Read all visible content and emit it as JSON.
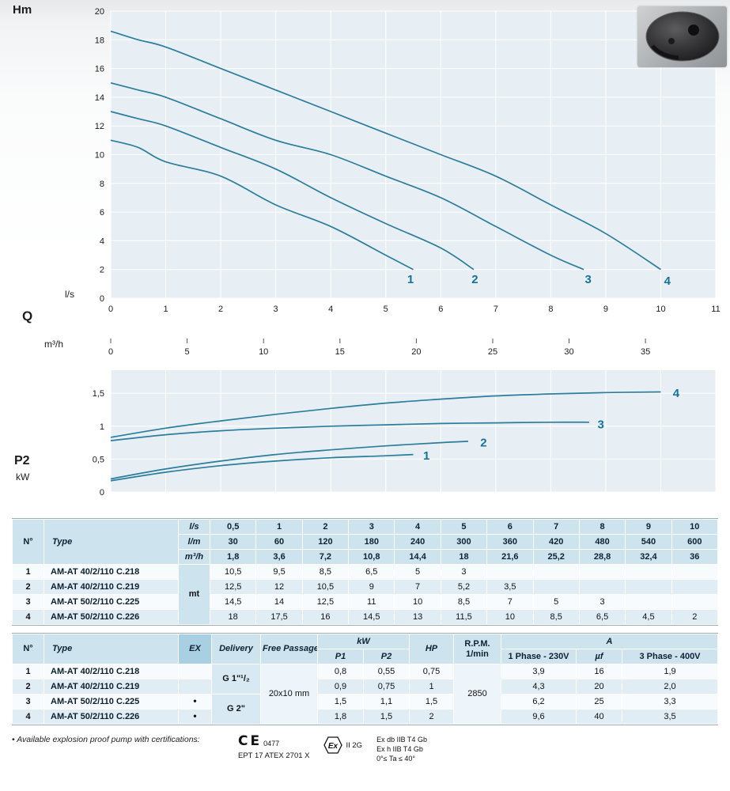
{
  "page": {
    "labels": {
      "hm": "Hm",
      "ls": "l/s",
      "q": "Q",
      "m3h": "m³/h",
      "p2": "P2",
      "kw": "kW"
    }
  },
  "colors": {
    "curve": "#2a7d9c",
    "curve_label": "#16719b",
    "plot_bg": "#e8eff4",
    "grid": "#ffffff",
    "header_bg": "#cde3ee",
    "row_alt_bg": "#e1edf5"
  },
  "chart_data": [
    {
      "type": "line",
      "name": "head-flow-curves",
      "ylabel": "Hm",
      "xlabel": "Q (l/s)",
      "xlabel_secondary": "Q (m³/h)",
      "xlim": [
        0,
        11
      ],
      "ylim": [
        0,
        20
      ],
      "x_ticks": [
        0,
        1,
        2,
        3,
        4,
        5,
        6,
        7,
        8,
        9,
        10,
        11
      ],
      "y_ticks": [
        0,
        2,
        4,
        6,
        8,
        10,
        12,
        14,
        16,
        18,
        20
      ],
      "show_x_tick_labels": true,
      "secondary_x_ticks": [
        0,
        5,
        10,
        15,
        20,
        25,
        30,
        35
      ],
      "secondary_factor": 3.6,
      "grid": true,
      "label_anchor": "middle",
      "label_dy": 0,
      "series": [
        {
          "label": "1",
          "name": "AM-AT 40/2/110 C.218",
          "label_pos": [
            5.45,
            1.05
          ],
          "points": [
            [
              0,
              11
            ],
            [
              0.5,
              10.5
            ],
            [
              1,
              9.5
            ],
            [
              2,
              8.5
            ],
            [
              3,
              6.5
            ],
            [
              4,
              5
            ],
            [
              5,
              3
            ],
            [
              5.5,
              2
            ]
          ]
        },
        {
          "label": "2",
          "name": "AM-AT 40/2/110 C.219",
          "label_pos": [
            6.62,
            1.05
          ],
          "points": [
            [
              0,
              13
            ],
            [
              0.5,
              12.5
            ],
            [
              1,
              12
            ],
            [
              2,
              10.5
            ],
            [
              3,
              9
            ],
            [
              4,
              7
            ],
            [
              5,
              5.2
            ],
            [
              6,
              3.5
            ],
            [
              6.6,
              2
            ]
          ]
        },
        {
          "label": "3",
          "name": "AM-AT 50/2/110 C.225",
          "label_pos": [
            8.68,
            1.05
          ],
          "points": [
            [
              0,
              15
            ],
            [
              0.5,
              14.5
            ],
            [
              1,
              14
            ],
            [
              2,
              12.5
            ],
            [
              3,
              11
            ],
            [
              4,
              10
            ],
            [
              5,
              8.5
            ],
            [
              6,
              7
            ],
            [
              7,
              5
            ],
            [
              8,
              3
            ],
            [
              8.6,
              2
            ]
          ]
        },
        {
          "label": "4",
          "name": "AM-AT 50/2/110 C.226",
          "label_pos": [
            10.12,
            0.95
          ],
          "points": [
            [
              0,
              18.6
            ],
            [
              0.5,
              18
            ],
            [
              1,
              17.5
            ],
            [
              2,
              16
            ],
            [
              3,
              14.5
            ],
            [
              4,
              13
            ],
            [
              5,
              11.5
            ],
            [
              6,
              10
            ],
            [
              7,
              8.5
            ],
            [
              8,
              6.5
            ],
            [
              9,
              4.5
            ],
            [
              10,
              2
            ]
          ]
        }
      ]
    },
    {
      "type": "line",
      "name": "power-curves",
      "ylabel": "P2 kW",
      "xlim": [
        0,
        11
      ],
      "ylim": [
        0,
        1.85
      ],
      "x_ticks": [
        0,
        1,
        2,
        3,
        4,
        5,
        6,
        7,
        8,
        9,
        10,
        11
      ],
      "y_ticks": [
        0,
        0.5,
        1,
        1.5
      ],
      "y_tick_labels": [
        "0",
        "0,5",
        "1",
        "1,5"
      ],
      "show_x_tick_labels": false,
      "grid": true,
      "label_anchor": "start",
      "label_dy": 5,
      "series": [
        {
          "label": "1",
          "label_pos": [
            5.68,
            0.55
          ],
          "points": [
            [
              0,
              0.17
            ],
            [
              1,
              0.3
            ],
            [
              2,
              0.4
            ],
            [
              3,
              0.47
            ],
            [
              4,
              0.52
            ],
            [
              5,
              0.55
            ],
            [
              5.5,
              0.57
            ]
          ]
        },
        {
          "label": "2",
          "label_pos": [
            6.72,
            0.75
          ],
          "points": [
            [
              0,
              0.2
            ],
            [
              1,
              0.35
            ],
            [
              2,
              0.47
            ],
            [
              3,
              0.57
            ],
            [
              4,
              0.64
            ],
            [
              5,
              0.7
            ],
            [
              6,
              0.75
            ],
            [
              6.5,
              0.77
            ]
          ]
        },
        {
          "label": "3",
          "label_pos": [
            8.85,
            1.03
          ],
          "points": [
            [
              0,
              0.78
            ],
            [
              1,
              0.87
            ],
            [
              2,
              0.93
            ],
            [
              3,
              0.97
            ],
            [
              4,
              1.0
            ],
            [
              5,
              1.02
            ],
            [
              6,
              1.04
            ],
            [
              7,
              1.05
            ],
            [
              8,
              1.06
            ],
            [
              8.7,
              1.06
            ]
          ]
        },
        {
          "label": "4",
          "label_pos": [
            10.22,
            1.5
          ],
          "points": [
            [
              0,
              0.83
            ],
            [
              1,
              0.97
            ],
            [
              2,
              1.08
            ],
            [
              3,
              1.18
            ],
            [
              4,
              1.27
            ],
            [
              5,
              1.35
            ],
            [
              6,
              1.41
            ],
            [
              7,
              1.46
            ],
            [
              8,
              1.49
            ],
            [
              9,
              1.51
            ],
            [
              10,
              1.52
            ]
          ]
        }
      ]
    }
  ],
  "performance_table": {
    "col_n": "N°",
    "col_type": "Type",
    "body_unit": "mt",
    "unit_rows": [
      {
        "unit": "l/s",
        "values": [
          "0,5",
          "1",
          "2",
          "3",
          "4",
          "5",
          "6",
          "7",
          "8",
          "9",
          "10"
        ]
      },
      {
        "unit": "l/m",
        "values": [
          "30",
          "60",
          "120",
          "180",
          "240",
          "300",
          "360",
          "420",
          "480",
          "540",
          "600"
        ]
      },
      {
        "unit": "m³/h",
        "values": [
          "1,8",
          "3,6",
          "7,2",
          "10,8",
          "14,4",
          "18",
          "21,6",
          "25,2",
          "28,8",
          "32,4",
          "36"
        ]
      }
    ],
    "rows": [
      {
        "n": "1",
        "type": "AM-AT 40/2/110 C.218",
        "values": [
          "10,5",
          "9,5",
          "8,5",
          "6,5",
          "5",
          "3",
          "",
          "",
          "",
          "",
          ""
        ]
      },
      {
        "n": "2",
        "type": "AM-AT 40/2/110 C.219",
        "values": [
          "12,5",
          "12",
          "10,5",
          "9",
          "7",
          "5,2",
          "3,5",
          "",
          "",
          "",
          ""
        ]
      },
      {
        "n": "3",
        "type": "AM-AT 50/2/110 C.225",
        "values": [
          "14,5",
          "14",
          "12,5",
          "11",
          "10",
          "8,5",
          "7",
          "5",
          "3",
          "",
          ""
        ]
      },
      {
        "n": "4",
        "type": "AM-AT 50/2/110 C.226",
        "values": [
          "18",
          "17,5",
          "16",
          "14,5",
          "13",
          "11,5",
          "10",
          "8,5",
          "6,5",
          "4,5",
          "2"
        ]
      }
    ]
  },
  "electrical_table": {
    "headers": {
      "n": "N°",
      "type": "Type",
      "ex": "EX",
      "delivery": "Delivery",
      "free_passage": "Free Passage",
      "kw": "kW",
      "p1": "P1",
      "p2": "P2",
      "hp": "HP",
      "rpm": "R.P.M.",
      "rpm_unit": "1/min",
      "a": "A",
      "phase1": "1 Phase - 230V",
      "uf": "µf",
      "phase3": "3 Phase - 400V"
    },
    "delivery_groups": [
      {
        "label": "G 1\"¹/₂",
        "rows": 2
      },
      {
        "label": "G 2\"",
        "rows": 2
      }
    ],
    "free_passage_value": "20x10 mm",
    "rpm_value": "2850",
    "rows": [
      {
        "n": "1",
        "type": "AM-AT 40/2/110 C.218",
        "ex": "",
        "p1": "0,8",
        "p2": "0,55",
        "hp": "0,75",
        "phase1": "3,9",
        "uf": "16",
        "phase3": "1,9"
      },
      {
        "n": "2",
        "type": "AM-AT 40/2/110 C.219",
        "ex": "",
        "p1": "0,9",
        "p2": "0,75",
        "hp": "1",
        "phase1": "4,3",
        "uf": "20",
        "phase3": "2,0"
      },
      {
        "n": "3",
        "type": "AM-AT 50/2/110 C.225",
        "ex": "•",
        "p1": "1,5",
        "p2": "1,1",
        "hp": "1,5",
        "phase1": "6,2",
        "uf": "25",
        "phase3": "3,3"
      },
      {
        "n": "4",
        "type": "AM-AT 50/2/110 C.226",
        "ex": "•",
        "p1": "1,8",
        "p2": "1,5",
        "hp": "2",
        "phase1": "9,6",
        "uf": "40",
        "phase3": "3,5"
      }
    ]
  },
  "footer": {
    "note": "• Available explosion proof pump with certifications:",
    "ce_mark": "CE",
    "ce_number": "0477",
    "ept": "EPT 17 ATEX 2701 X",
    "ex_mark": "Ex",
    "ii2g": "II 2G",
    "cert_lines": [
      "Ex db IIB T4 Gb",
      "Ex h IIB T4 Gb",
      "0°≤ Ta ≤ 40°"
    ]
  }
}
